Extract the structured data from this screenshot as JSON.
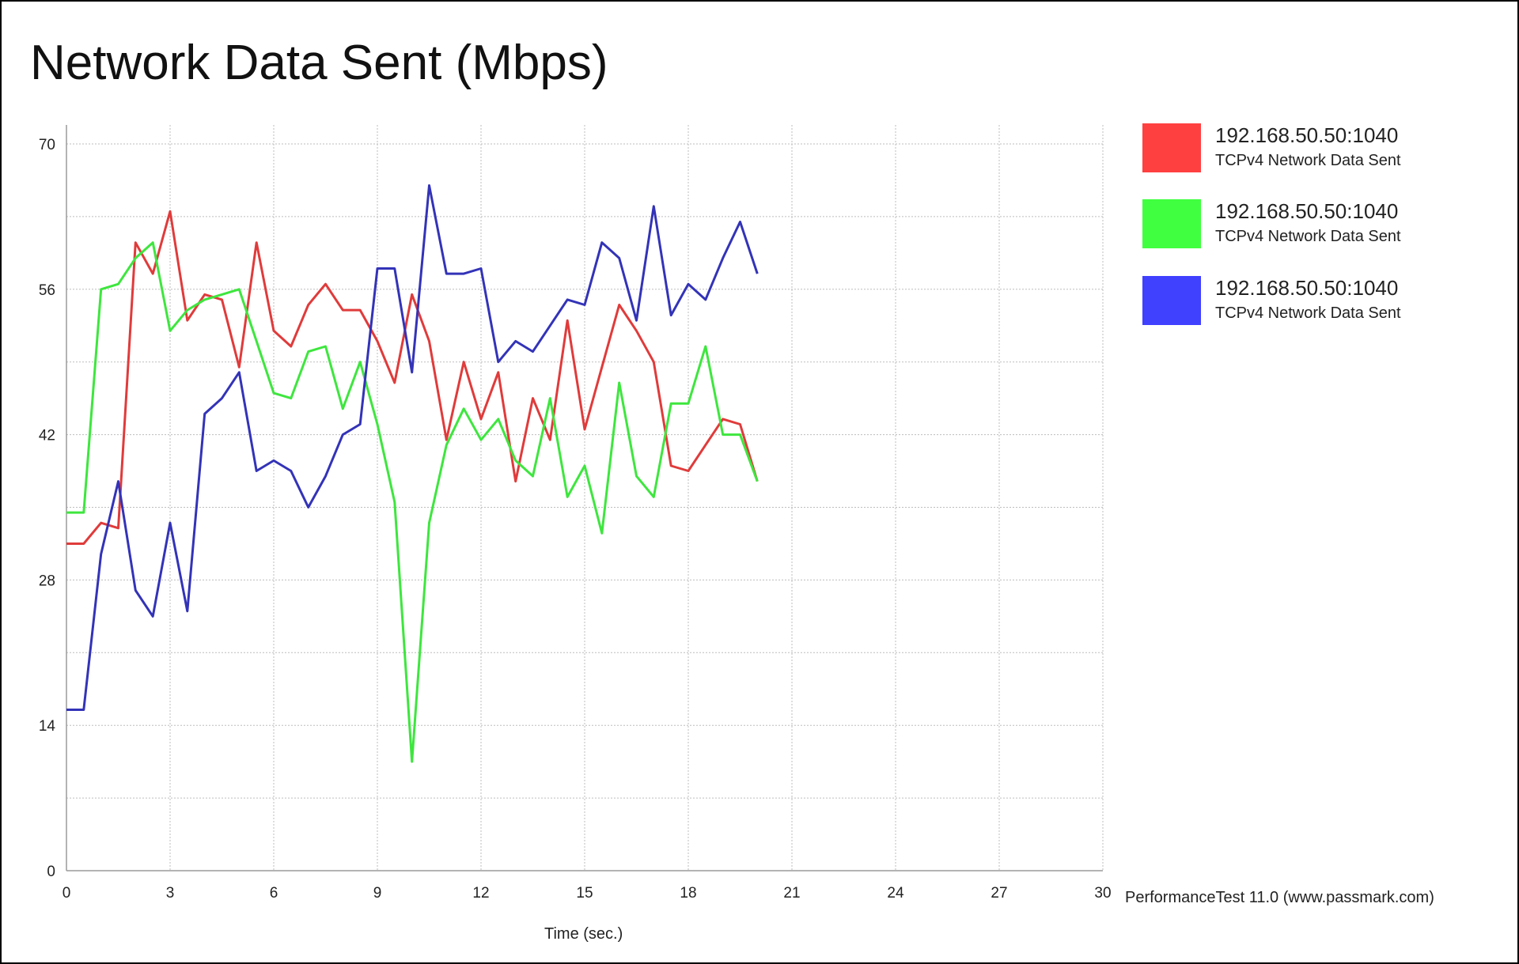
{
  "header": {
    "title": "Network Data Sent (Mbps)"
  },
  "watermark": "PerformanceTest 11.0 (www.passmark.com)",
  "legend": [
    {
      "title": "192.168.50.50:1040",
      "subtitle": "TCPv4 Network Data Sent",
      "color": "#ff4040"
    },
    {
      "title": "192.168.50.50:1040",
      "subtitle": "TCPv4 Network Data Sent",
      "color": "#40ff40"
    },
    {
      "title": "192.168.50.50:1040",
      "subtitle": "TCPv4 Network Data Sent",
      "color": "#4040ff"
    }
  ],
  "chart_data": {
    "type": "line",
    "title": "Network Data Sent (Mbps)",
    "xlabel": "Time (sec.)",
    "ylabel": "",
    "xlim": [
      0,
      30
    ],
    "ylim": [
      0,
      70
    ],
    "xticks": [
      0,
      3,
      6,
      9,
      12,
      15,
      18,
      21,
      24,
      27,
      30
    ],
    "yticks": [
      0,
      14,
      28,
      42,
      56,
      70
    ],
    "grid": true,
    "legend_position": "right",
    "x": [
      0,
      0.5,
      1,
      1.5,
      2,
      2.5,
      3,
      3.5,
      4,
      4.5,
      5,
      5.5,
      6,
      6.5,
      7,
      7.5,
      8,
      8.5,
      9,
      9.5,
      10,
      10.5,
      11,
      11.5,
      12,
      12.5,
      13,
      13.5,
      14,
      14.5,
      15,
      15.5,
      16,
      16.5,
      17,
      17.5,
      18,
      18.5,
      19,
      19.5,
      20
    ],
    "series": [
      {
        "name": "192.168.50.50:1040",
        "color": "#e03b3b",
        "values": [
          31.5,
          31.5,
          33.5,
          33,
          60.5,
          57.5,
          63.5,
          53,
          55.5,
          55,
          48.5,
          60.5,
          52,
          50.5,
          54.5,
          56.5,
          54,
          54,
          51,
          47,
          55.5,
          51,
          41.5,
          49,
          43.5,
          48,
          37.5,
          45.5,
          41.5,
          53,
          42.5,
          48.5,
          54.5,
          52,
          49,
          39,
          38.5,
          41,
          43.5,
          43,
          37.5
        ]
      },
      {
        "name": "192.168.50.50:1040",
        "color": "#3ee63e",
        "values": [
          34.5,
          34.5,
          56,
          56.5,
          59,
          60.5,
          52,
          54,
          55,
          55.5,
          56,
          51,
          46,
          45.5,
          50,
          50.5,
          44.5,
          49,
          43,
          35.5,
          10.5,
          33.5,
          41,
          44.5,
          41.5,
          43.5,
          39.5,
          38,
          45.5,
          36,
          39,
          32.5,
          47,
          38,
          36,
          45,
          45,
          50.5,
          42,
          42,
          37.5
        ]
      },
      {
        "name": "192.168.50.50:1040",
        "color": "#3333b8",
        "values": [
          15.5,
          15.5,
          30.5,
          37.5,
          27,
          24.5,
          33.5,
          25,
          44,
          45.5,
          48,
          38.5,
          39.5,
          38.5,
          35,
          38,
          42,
          43,
          58,
          58,
          48,
          66,
          57.5,
          57.5,
          58,
          49,
          51,
          50,
          52.5,
          55,
          54.5,
          60.5,
          59,
          53,
          64,
          53.5,
          56.5,
          55,
          59,
          62.5,
          57.5
        ]
      }
    ]
  }
}
